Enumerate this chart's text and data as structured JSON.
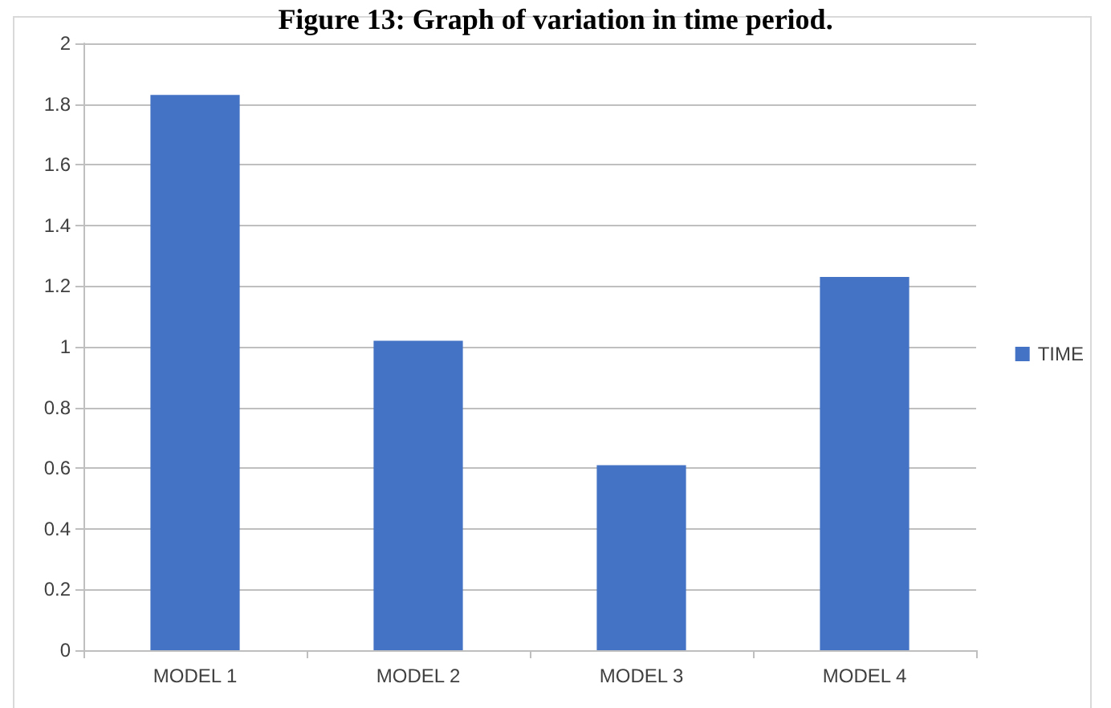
{
  "chart_data": {
    "type": "bar",
    "title": "Figure 13: Graph of variation in time period.",
    "categories": [
      "MODEL 1",
      "MODEL 2",
      "MODEL 3",
      "MODEL 4"
    ],
    "series": [
      {
        "name": "TIME",
        "color": "#4472c4",
        "values": [
          1.83,
          1.02,
          0.61,
          1.23
        ]
      }
    ],
    "ylim": [
      0,
      2
    ],
    "yticks": [
      0,
      0.2,
      0.4,
      0.6,
      0.8,
      1,
      1.2,
      1.4,
      1.6,
      1.8,
      2
    ],
    "grid": "y",
    "legend": "right"
  }
}
